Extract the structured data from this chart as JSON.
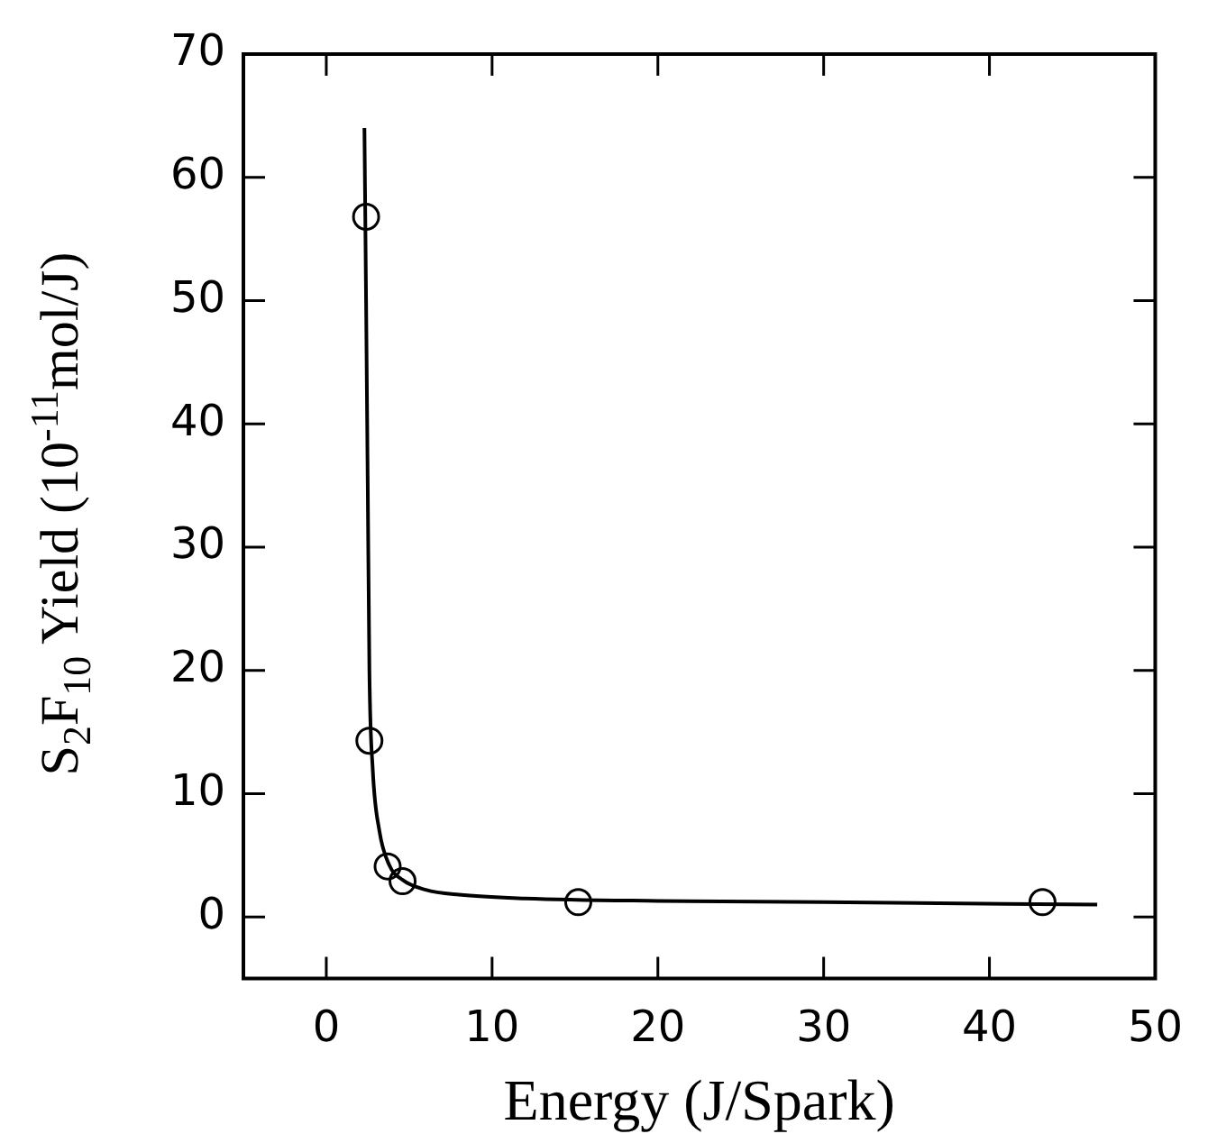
{
  "chart_data": {
    "type": "scatter",
    "xlabel": "Energy (J/Spark)",
    "ylabel": "S$_{2}$F$_{10}$ Yield (10$^{-11}$mol/J)",
    "xlim": [
      -5,
      50
    ],
    "ylim": [
      -5,
      70
    ],
    "xticks": [
      0,
      10,
      20,
      30,
      40,
      50
    ],
    "yticks": [
      0,
      10,
      20,
      30,
      40,
      50,
      60,
      70
    ],
    "grid": false,
    "legend": false,
    "series": [
      {
        "marker": "circle",
        "color": "#000000",
        "x": [
          2.4,
          2.6,
          3.7,
          4.6,
          15.2,
          43.2
        ],
        "values": [
          56.8,
          14.3,
          4.1,
          2.9,
          1.2,
          1.2
        ]
      },
      {
        "type": "line",
        "marker": "none",
        "color": "#000000",
        "x": [
          2.3,
          2.4,
          2.5,
          2.6,
          2.8,
          3.2,
          3.8,
          4.6,
          6,
          8,
          12,
          20,
          30,
          46.5
        ],
        "values": [
          64,
          50,
          35,
          20,
          12,
          7,
          4.2,
          3,
          2.2,
          1.8,
          1.5,
          1.3,
          1.2,
          1.0
        ]
      }
    ]
  }
}
